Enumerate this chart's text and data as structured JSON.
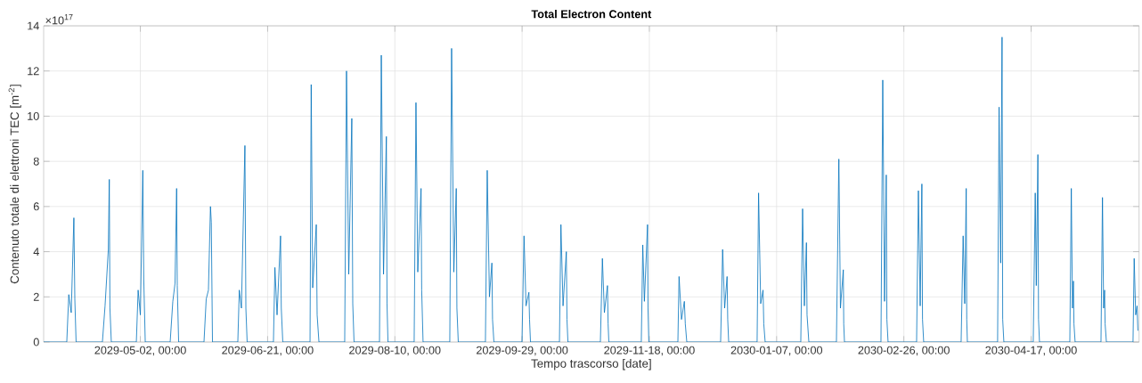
{
  "chart_data": {
    "type": "line",
    "title": "Total Electron Content",
    "xlabel": "Tempo trascorso [date]",
    "ylabel": "Contenuto totale di elettroni TEC [m$^{-2}$]",
    "annotations": [
      "×10$^{17}$"
    ],
    "xlim": [
      "2029-03-25T00:00",
      "2030-05-29T10:00"
    ],
    "xticks": [
      {
        "value": "2029-05-02",
        "label": "2029-05-02, 00:00"
      },
      {
        "value": "2029-06-21",
        "label": "2029-06-21, 00:00"
      },
      {
        "value": "2029-08-10",
        "label": "2029-08-10, 00:00"
      },
      {
        "value": "2029-09-29",
        "label": "2029-09-29, 00:00"
      },
      {
        "value": "2029-11-18",
        "label": "2029-11-18, 00:00"
      },
      {
        "value": "2030-01-07",
        "label": "2030-01-07, 00:00"
      },
      {
        "value": "2030-02-26",
        "label": "2030-02-26, 00:00"
      },
      {
        "value": "2030-04-17",
        "label": "2030-04-17, 00:00"
      }
    ],
    "ylim": [
      0,
      14
    ],
    "yticks": [
      0,
      2,
      4,
      6,
      8,
      10,
      12,
      14
    ],
    "grid": true,
    "x": [
      "2029-03-25T00:00",
      "2029-04-03T02:00",
      "2029-04-03T21:00",
      "2029-04-04T20:00",
      "2029-04-05T21:00",
      "2029-04-06T06:00",
      "2029-04-06T18:00",
      "2029-04-17T02:00",
      "2029-04-18T03:00",
      "2029-04-19T10:00",
      "2029-04-19T19:00",
      "2029-04-20T01:00",
      "2029-04-20T14:00",
      "2029-04-30T10:00",
      "2029-05-01T03:00",
      "2029-05-02T00:00",
      "2029-05-02T23:00",
      "2029-05-03T08:00",
      "2029-05-03T22:00",
      "2029-05-13T17:00",
      "2029-05-14T18:00",
      "2029-05-15T15:00",
      "2029-05-16T06:00",
      "2029-05-16T12:00",
      "2029-05-17T01:00",
      "2029-05-27T00:00",
      "2029-05-27T21:00",
      "2029-05-28T18:00",
      "2029-05-29T13:00",
      "2029-05-29T21:00",
      "2029-05-30T08:00",
      "2029-06-09T07:00",
      "2029-06-09T21:00",
      "2029-06-10T17:00",
      "2029-06-12T02:00",
      "2029-06-12T11:00",
      "2029-06-12T23:00",
      "2029-06-23T07:00",
      "2029-06-23T21:00",
      "2029-06-24T17:00",
      "2029-06-26T02:00",
      "2029-06-26T09:00",
      "2029-06-26T23:00",
      "2029-07-07T16:00",
      "2029-07-08T03:00",
      "2029-07-08T17:00",
      "2029-07-10T03:00",
      "2029-07-10T11:00",
      "2029-07-11T04:00",
      "2029-07-21T07:00",
      "2029-07-22T00:00",
      "2029-07-22T21:00",
      "2029-07-24T02:00",
      "2029-07-24T11:00",
      "2029-07-24T23:00",
      "2029-08-03T23:00",
      "2029-08-04T16:00",
      "2029-08-05T13:00",
      "2029-08-06T16:00",
      "2029-08-06T22:00",
      "2029-08-07T07:00",
      "2029-08-17T14:00",
      "2029-08-18T07:00",
      "2029-08-19T00:00",
      "2029-08-20T07:00",
      "2029-08-20T13:00",
      "2029-08-21T02:00",
      "2029-08-31T14:00",
      "2029-09-01T07:00",
      "2029-09-02T04:00",
      "2029-09-03T03:00",
      "2029-09-03T09:00",
      "2029-09-03T22:00",
      "2029-09-14T14:00",
      "2029-09-15T07:00",
      "2029-09-16T04:00",
      "2029-09-17T03:00",
      "2029-09-17T09:00",
      "2029-09-17T22:00",
      "2029-09-28T23:00",
      "2029-09-29T18:00",
      "2029-09-30T13:00",
      "2029-10-01T16:00",
      "2029-10-01T22:00",
      "2029-10-02T07:00",
      "2029-10-13T16:00",
      "2029-10-14T06:00",
      "2029-10-15T02:00",
      "2029-10-16T09:00",
      "2029-10-16T15:00",
      "2029-10-17T00:00",
      "2029-10-29T18:00",
      "2029-10-30T13:00",
      "2029-10-31T08:00",
      "2029-11-01T13:00",
      "2029-11-01T19:00",
      "2029-11-02T02:00",
      "2029-11-14T20:00",
      "2029-11-15T10:00",
      "2029-11-16T01:00",
      "2029-11-17T07:00",
      "2029-11-17T11:00",
      "2029-11-17T19:00",
      "2029-11-29T05:00",
      "2029-11-29T16:00",
      "2029-11-30T15:00",
      "2029-12-01T18:00",
      "2029-12-02T03:00",
      "2029-12-02T17:00",
      "2029-12-16T00:00",
      "2029-12-16T19:00",
      "2029-12-17T14:00",
      "2029-12-18T13:00",
      "2029-12-18T19:00",
      "2029-12-19T04:00",
      "2029-12-30T08:00",
      "2029-12-30T22:00",
      "2029-12-31T18:00",
      "2030-01-01T16:00",
      "2030-01-01T23:00",
      "2030-01-02T12:00",
      "2030-01-16T12:00",
      "2030-01-17T05:00",
      "2030-01-17T22:00",
      "2030-01-18T17:00",
      "2030-01-18T23:00",
      "2030-01-19T16:00",
      "2030-01-30T12:00",
      "2030-01-31T11:00",
      "2030-02-01T02:00",
      "2030-02-02T05:00",
      "2030-02-02T09:00",
      "2030-02-02T16:00",
      "2030-02-17T00:00",
      "2030-02-17T17:00",
      "2030-02-18T10:00",
      "2030-02-19T02:00",
      "2030-02-19T08:00",
      "2030-02-19T19:00",
      "2030-03-03T00:00",
      "2030-03-03T17:00",
      "2030-03-04T10:00",
      "2030-03-05T02:00",
      "2030-03-05T08:00",
      "2030-03-05T19:00",
      "2030-03-20T12:00",
      "2030-03-21T07:00",
      "2030-03-21T22:00",
      "2030-03-22T12:00",
      "2030-03-22T17:00",
      "2030-03-22T23:00",
      "2030-04-03T20:00",
      "2030-04-04T10:00",
      "2030-04-05T01:00",
      "2030-04-05T14:00",
      "2030-04-05T20:00",
      "2030-04-06T07:00",
      "2030-04-17T20:00",
      "2030-04-18T15:00",
      "2030-04-19T01:00",
      "2030-04-19T16:00",
      "2030-04-19T22:00",
      "2030-04-20T07:00",
      "2030-05-02T05:00",
      "2030-05-02T19:00",
      "2030-05-03T06:00",
      "2030-05-03T15:00",
      "2030-05-03T20:00",
      "2030-05-04T07:00",
      "2030-05-14T11:00",
      "2030-05-15T01:00",
      "2030-05-15T12:00",
      "2030-05-15T21:00",
      "2030-05-16T02:00",
      "2030-05-16T14:00",
      "2030-05-27T01:00",
      "2030-05-27T12:00",
      "2030-05-28T02:00",
      "2030-05-28T15:00",
      "2030-05-28T23:00"
    ],
    "series": [
      {
        "color": "#0072bd",
        "values": [
          0,
          0,
          2.1,
          1.3,
          5.5,
          1.9,
          0,
          0,
          1.6,
          4.1,
          7.2,
          1.5,
          0,
          0,
          2.3,
          1.2,
          7.6,
          2.8,
          0,
          0,
          1.8,
          2.6,
          6.8,
          2.5,
          0,
          0,
          1.9,
          2.3,
          6.0,
          5.3,
          0,
          0,
          2.3,
          1.5,
          8.7,
          1.5,
          0,
          0,
          3.3,
          1.2,
          4.7,
          1.5,
          0,
          0,
          11.4,
          2.4,
          5.2,
          1.2,
          0,
          0,
          12.0,
          3.0,
          9.9,
          1.7,
          0,
          0,
          12.7,
          3.0,
          9.1,
          1.7,
          0,
          0,
          10.6,
          3.1,
          6.8,
          2.3,
          0,
          0,
          13.0,
          3.1,
          6.8,
          1.5,
          0,
          0,
          7.6,
          2.0,
          3.5,
          1.0,
          0,
          0,
          4.7,
          1.6,
          2.2,
          1.0,
          0,
          0,
          5.2,
          1.6,
          4.0,
          1.0,
          0,
          0,
          3.7,
          1.3,
          2.5,
          0.8,
          0,
          0,
          4.3,
          1.8,
          5.2,
          1.5,
          0,
          0,
          2.9,
          1.0,
          1.8,
          0.8,
          0,
          0,
          4.1,
          1.5,
          2.9,
          1.0,
          0,
          0,
          6.6,
          1.7,
          2.3,
          0.8,
          0,
          0,
          5.9,
          1.6,
          4.4,
          1.2,
          0,
          0,
          8.1,
          1.5,
          3.2,
          0.8,
          0,
          0,
          11.6,
          1.8,
          7.4,
          1.0,
          0,
          0,
          6.7,
          1.6,
          7.0,
          1.0,
          0,
          0,
          4.7,
          1.7,
          6.8,
          1.0,
          0,
          0,
          10.4,
          3.5,
          13.5,
          1.0,
          0,
          0,
          6.6,
          2.5,
          8.3,
          1.0,
          0,
          0,
          6.8,
          1.5,
          2.7,
          0.8,
          0,
          0,
          6.4,
          1.5,
          2.3,
          0.8,
          0,
          0,
          3.7,
          1.2,
          1.6,
          0.5
        ]
      }
    ]
  }
}
